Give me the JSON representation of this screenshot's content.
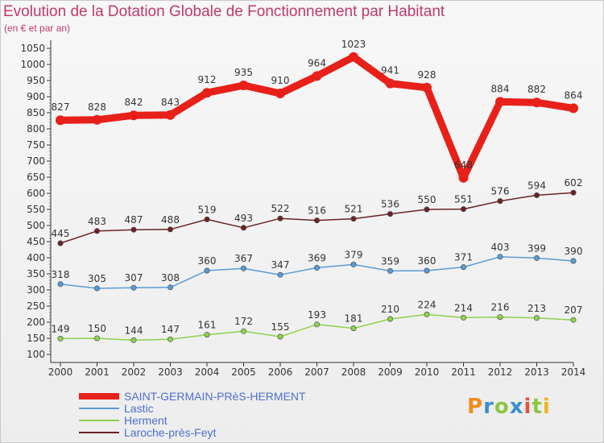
{
  "header": {
    "title": "Evolution de la Dotation Globale de Fonctionnement par Habitant",
    "subtitle": "(en € et par an)"
  },
  "logo": {
    "text": "Proxiti"
  },
  "chart_data": {
    "type": "line",
    "x": [
      "2000",
      "2001",
      "2002",
      "2003",
      "2004",
      "2005",
      "2006",
      "2007",
      "2008",
      "2009",
      "2010",
      "2011",
      "2012",
      "2013",
      "2014"
    ],
    "ylim": [
      100,
      1050
    ],
    "yticks": [
      100,
      150,
      200,
      250,
      300,
      350,
      400,
      450,
      500,
      550,
      600,
      650,
      700,
      750,
      800,
      850,
      900,
      950,
      1000,
      1050
    ],
    "grid": false,
    "legend": "bottom-left",
    "series": [
      {
        "name": "SAINT-GERMAIN-PRèS-HERMENT",
        "color": "#e8201a",
        "width": 9,
        "values": [
          827,
          828,
          842,
          843,
          912,
          935,
          910,
          964,
          1023,
          941,
          928,
          648,
          884,
          882,
          864
        ]
      },
      {
        "name": "Lastic",
        "color": "#5b9bd5",
        "width": 1.5,
        "values": [
          318,
          305,
          307,
          308,
          360,
          367,
          347,
          369,
          379,
          359,
          360,
          371,
          403,
          399,
          390
        ]
      },
      {
        "name": "Herment",
        "color": "#8fd14f",
        "width": 1.5,
        "values": [
          149,
          150,
          144,
          147,
          161,
          172,
          155,
          193,
          181,
          210,
          224,
          214,
          216,
          213,
          207
        ]
      },
      {
        "name": "Laroche-près-Feyt",
        "color": "#6b2323",
        "width": 1.5,
        "values": [
          445,
          483,
          487,
          488,
          519,
          493,
          522,
          516,
          521,
          536,
          550,
          551,
          576,
          594,
          602
        ]
      }
    ]
  }
}
